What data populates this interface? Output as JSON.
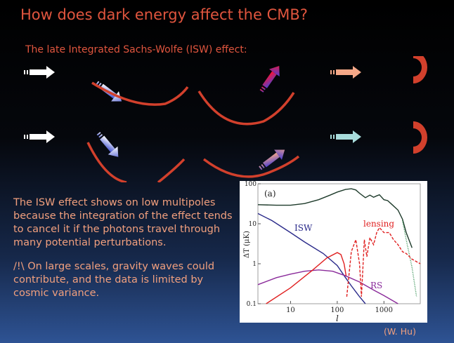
{
  "slide": {
    "title": "How does dark energy affect the CMB?",
    "subtitle": "The late Integrated Sachs-Wolfe (ISW) effect:",
    "paragraphs": [
      "The ISW effect shows on low multipoles because the integration of the effect tends to cancel it if the photons travel through many potential perturbations.",
      "/!\\ On large scales, gravity waves could contribute, and the data is limited by cosmic variance."
    ],
    "credit": "(W. Hu)"
  },
  "colors": {
    "title": "#e0553e",
    "well": "#d2402c",
    "blue": "#4050d0",
    "red": "#ff1030",
    "peach": "#f5a888",
    "cyan": "#a8dcdc"
  },
  "chart_data": {
    "type": "line",
    "panel_label": "(a)",
    "xlabel": "l",
    "ylabel": "ΔT (μK)",
    "xscale": "log",
    "yscale": "log",
    "xlim": [
      2,
      6000
    ],
    "ylim": [
      0.1,
      100
    ],
    "xticks": [
      10,
      100,
      1000
    ],
    "xtick_labels": [
      "10",
      "100",
      "1000"
    ],
    "yticks": [
      0.1,
      1,
      10,
      100
    ],
    "ytick_labels": [
      "0.1",
      "1",
      "10",
      "100"
    ],
    "annotations": [
      "ISW",
      "lensing",
      "RS"
    ],
    "series": [
      {
        "name": "total",
        "color": "#1d3a2a",
        "style": "solid",
        "x": [
          2,
          5,
          10,
          20,
          40,
          70,
          100,
          150,
          200,
          250,
          300,
          400,
          500,
          600,
          700,
          800,
          1000,
          1200,
          1500,
          2000,
          2500,
          3000,
          4000
        ],
        "y": [
          30,
          29,
          29,
          32,
          40,
          52,
          62,
          72,
          75,
          70,
          58,
          45,
          52,
          46,
          50,
          53,
          40,
          38,
          30,
          22,
          13,
          6,
          2.5
        ]
      },
      {
        "name": "total-unlensed",
        "color": "#2a8a4a",
        "style": "dotted",
        "x": [
          2500,
          3000,
          4000,
          5000
        ],
        "y": [
          12,
          4,
          0.8,
          0.15
        ]
      },
      {
        "name": "ISW",
        "color": "#2a2a8a",
        "style": "solid",
        "x": [
          2,
          4,
          10,
          20,
          50,
          100,
          150,
          200,
          300,
          400
        ],
        "y": [
          18,
          12,
          6,
          3.5,
          1.8,
          0.9,
          0.45,
          0.28,
          0.15,
          0.1
        ]
      },
      {
        "name": "RS",
        "color": "#8a2a9a",
        "style": "solid",
        "x": [
          2,
          5,
          10,
          20,
          40,
          80,
          150,
          300,
          600,
          1000,
          2000
        ],
        "y": [
          0.3,
          0.45,
          0.55,
          0.65,
          0.7,
          0.65,
          0.5,
          0.35,
          0.22,
          0.16,
          0.1
        ]
      },
      {
        "name": "lensing",
        "color": "#e02020",
        "style": "solid",
        "x": [
          3,
          10,
          30,
          60,
          100,
          120,
          140,
          155
        ],
        "y": [
          0.1,
          0.25,
          0.7,
          1.4,
          1.9,
          1.7,
          1.0,
          0.5
        ]
      },
      {
        "name": "lensing-negative",
        "color": "#e02020",
        "style": "dashed",
        "x": [
          160,
          200,
          250,
          300,
          330,
          380,
          430,
          500,
          600,
          700,
          800,
          1000,
          1300,
          1600,
          2000,
          2500,
          3000,
          4000,
          6000
        ],
        "y": [
          0.15,
          2,
          4,
          1,
          0.15,
          4,
          1.5,
          4.5,
          3,
          6,
          8,
          6,
          6,
          4,
          3,
          2,
          1.8,
          1.3,
          1
        ]
      }
    ]
  }
}
